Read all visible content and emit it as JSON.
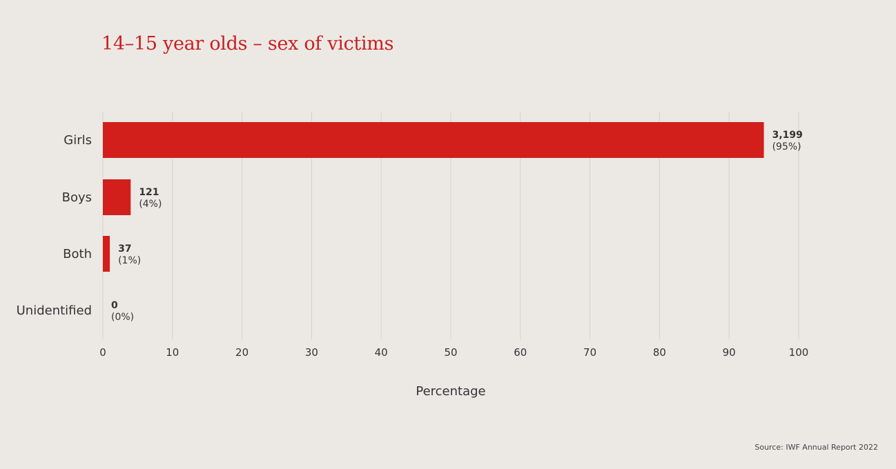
{
  "title": "14–15 year olds – sex of victims",
  "source": "Source: IWF Annual Report 2022",
  "colors": {
    "bar": "#d21f1b",
    "title": "#c8201e",
    "grid": "#d6d2cd",
    "background": "#ece9e5"
  },
  "chart_data": {
    "type": "bar",
    "orientation": "horizontal",
    "categories": [
      "Girls",
      "Boys",
      "Both",
      "Unidentified"
    ],
    "values": [
      95,
      4,
      1,
      0
    ],
    "counts": [
      "3,199",
      "121",
      "37",
      "0"
    ],
    "percent_labels": [
      "(95%)",
      "(4%)",
      "(1%)",
      "(0%)"
    ],
    "title": "14–15 year olds – sex of victims",
    "xlabel": "Percentage",
    "ylabel": "",
    "xlim": [
      0,
      100
    ],
    "xticks": [
      "0",
      "10",
      "20",
      "30",
      "40",
      "50",
      "60",
      "70",
      "80",
      "90",
      "100"
    ],
    "grid": true,
    "legend": "none"
  }
}
